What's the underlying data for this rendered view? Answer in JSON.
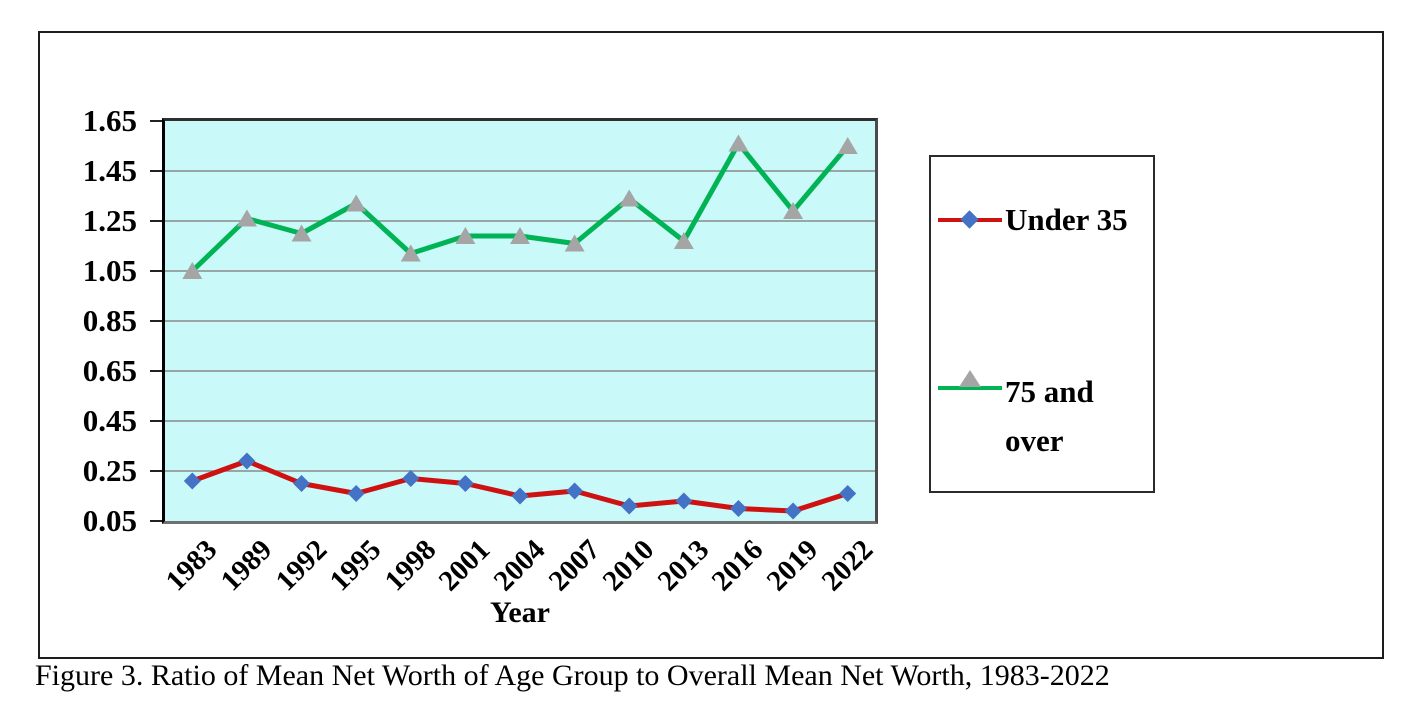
{
  "figure": {
    "caption": "Figure 3. Ratio of Mean Net Worth of Age Group to Overall Mean Net Worth, 1983-2022"
  },
  "chart_data": {
    "type": "line",
    "title": "",
    "xlabel": "Year",
    "ylabel": "",
    "categories": [
      "1983",
      "1989",
      "1992",
      "1995",
      "1998",
      "2001",
      "2004",
      "2007",
      "2010",
      "2013",
      "2016",
      "2019",
      "2022"
    ],
    "y_ticks": [
      1.65,
      1.45,
      1.25,
      1.05,
      0.85,
      0.65,
      0.45,
      0.25,
      0.05
    ],
    "ylim": [
      0.05,
      1.65
    ],
    "grid": true,
    "legend_position": "right",
    "plot_background": "#C9F9F9",
    "gridline_color": "#8a8a8a",
    "series": [
      {
        "name": "Under 35",
        "line_color": "#CE1111",
        "marker": "diamond",
        "marker_color": "#4472C4",
        "values": [
          0.21,
          0.29,
          0.2,
          0.16,
          0.22,
          0.2,
          0.15,
          0.17,
          0.11,
          0.13,
          0.1,
          0.09,
          0.16
        ]
      },
      {
        "name": "75 and over",
        "line_color": "#00B455",
        "marker": "triangle",
        "marker_color": "#A5A5A5",
        "values": [
          1.05,
          1.26,
          1.2,
          1.32,
          1.12,
          1.19,
          1.19,
          1.16,
          1.34,
          1.17,
          1.56,
          1.29,
          1.55
        ]
      }
    ]
  }
}
